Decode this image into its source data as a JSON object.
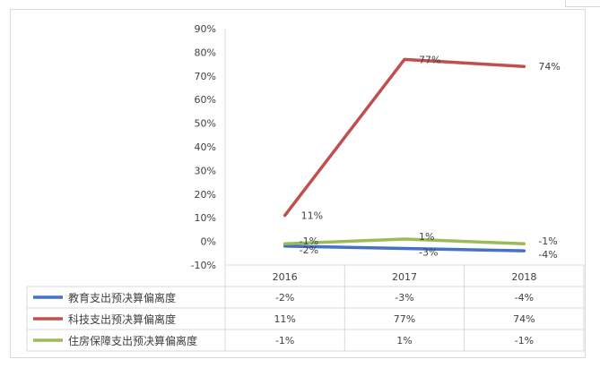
{
  "chart_data": {
    "type": "line",
    "title": "",
    "xlabel": "",
    "ylabel": "",
    "categories": [
      "2016",
      "2017",
      "2018"
    ],
    "ylim": [
      -10,
      90
    ],
    "yticks": [
      "90%",
      "80%",
      "70%",
      "60%",
      "50%",
      "40%",
      "30%",
      "20%",
      "10%",
      "0%",
      "-10%"
    ],
    "legend_position": "data-table-left",
    "grid": false,
    "series": [
      {
        "name": "教育支出预决算偏离度",
        "color": "#4472c4",
        "values": [
          -2,
          -3,
          -4
        ],
        "labels": [
          "-2%",
          "-3%",
          "-4%"
        ]
      },
      {
        "name": "科技支出预决算偏离度",
        "color": "#c0504d",
        "values": [
          11,
          77,
          74
        ],
        "labels": [
          "11%",
          "77%",
          "74%"
        ]
      },
      {
        "name": "住房保障支出预决算偏离度",
        "color": "#9bbb59",
        "values": [
          -1,
          1,
          -1
        ],
        "labels": [
          "-1%",
          "1%",
          "-1%"
        ]
      }
    ]
  }
}
